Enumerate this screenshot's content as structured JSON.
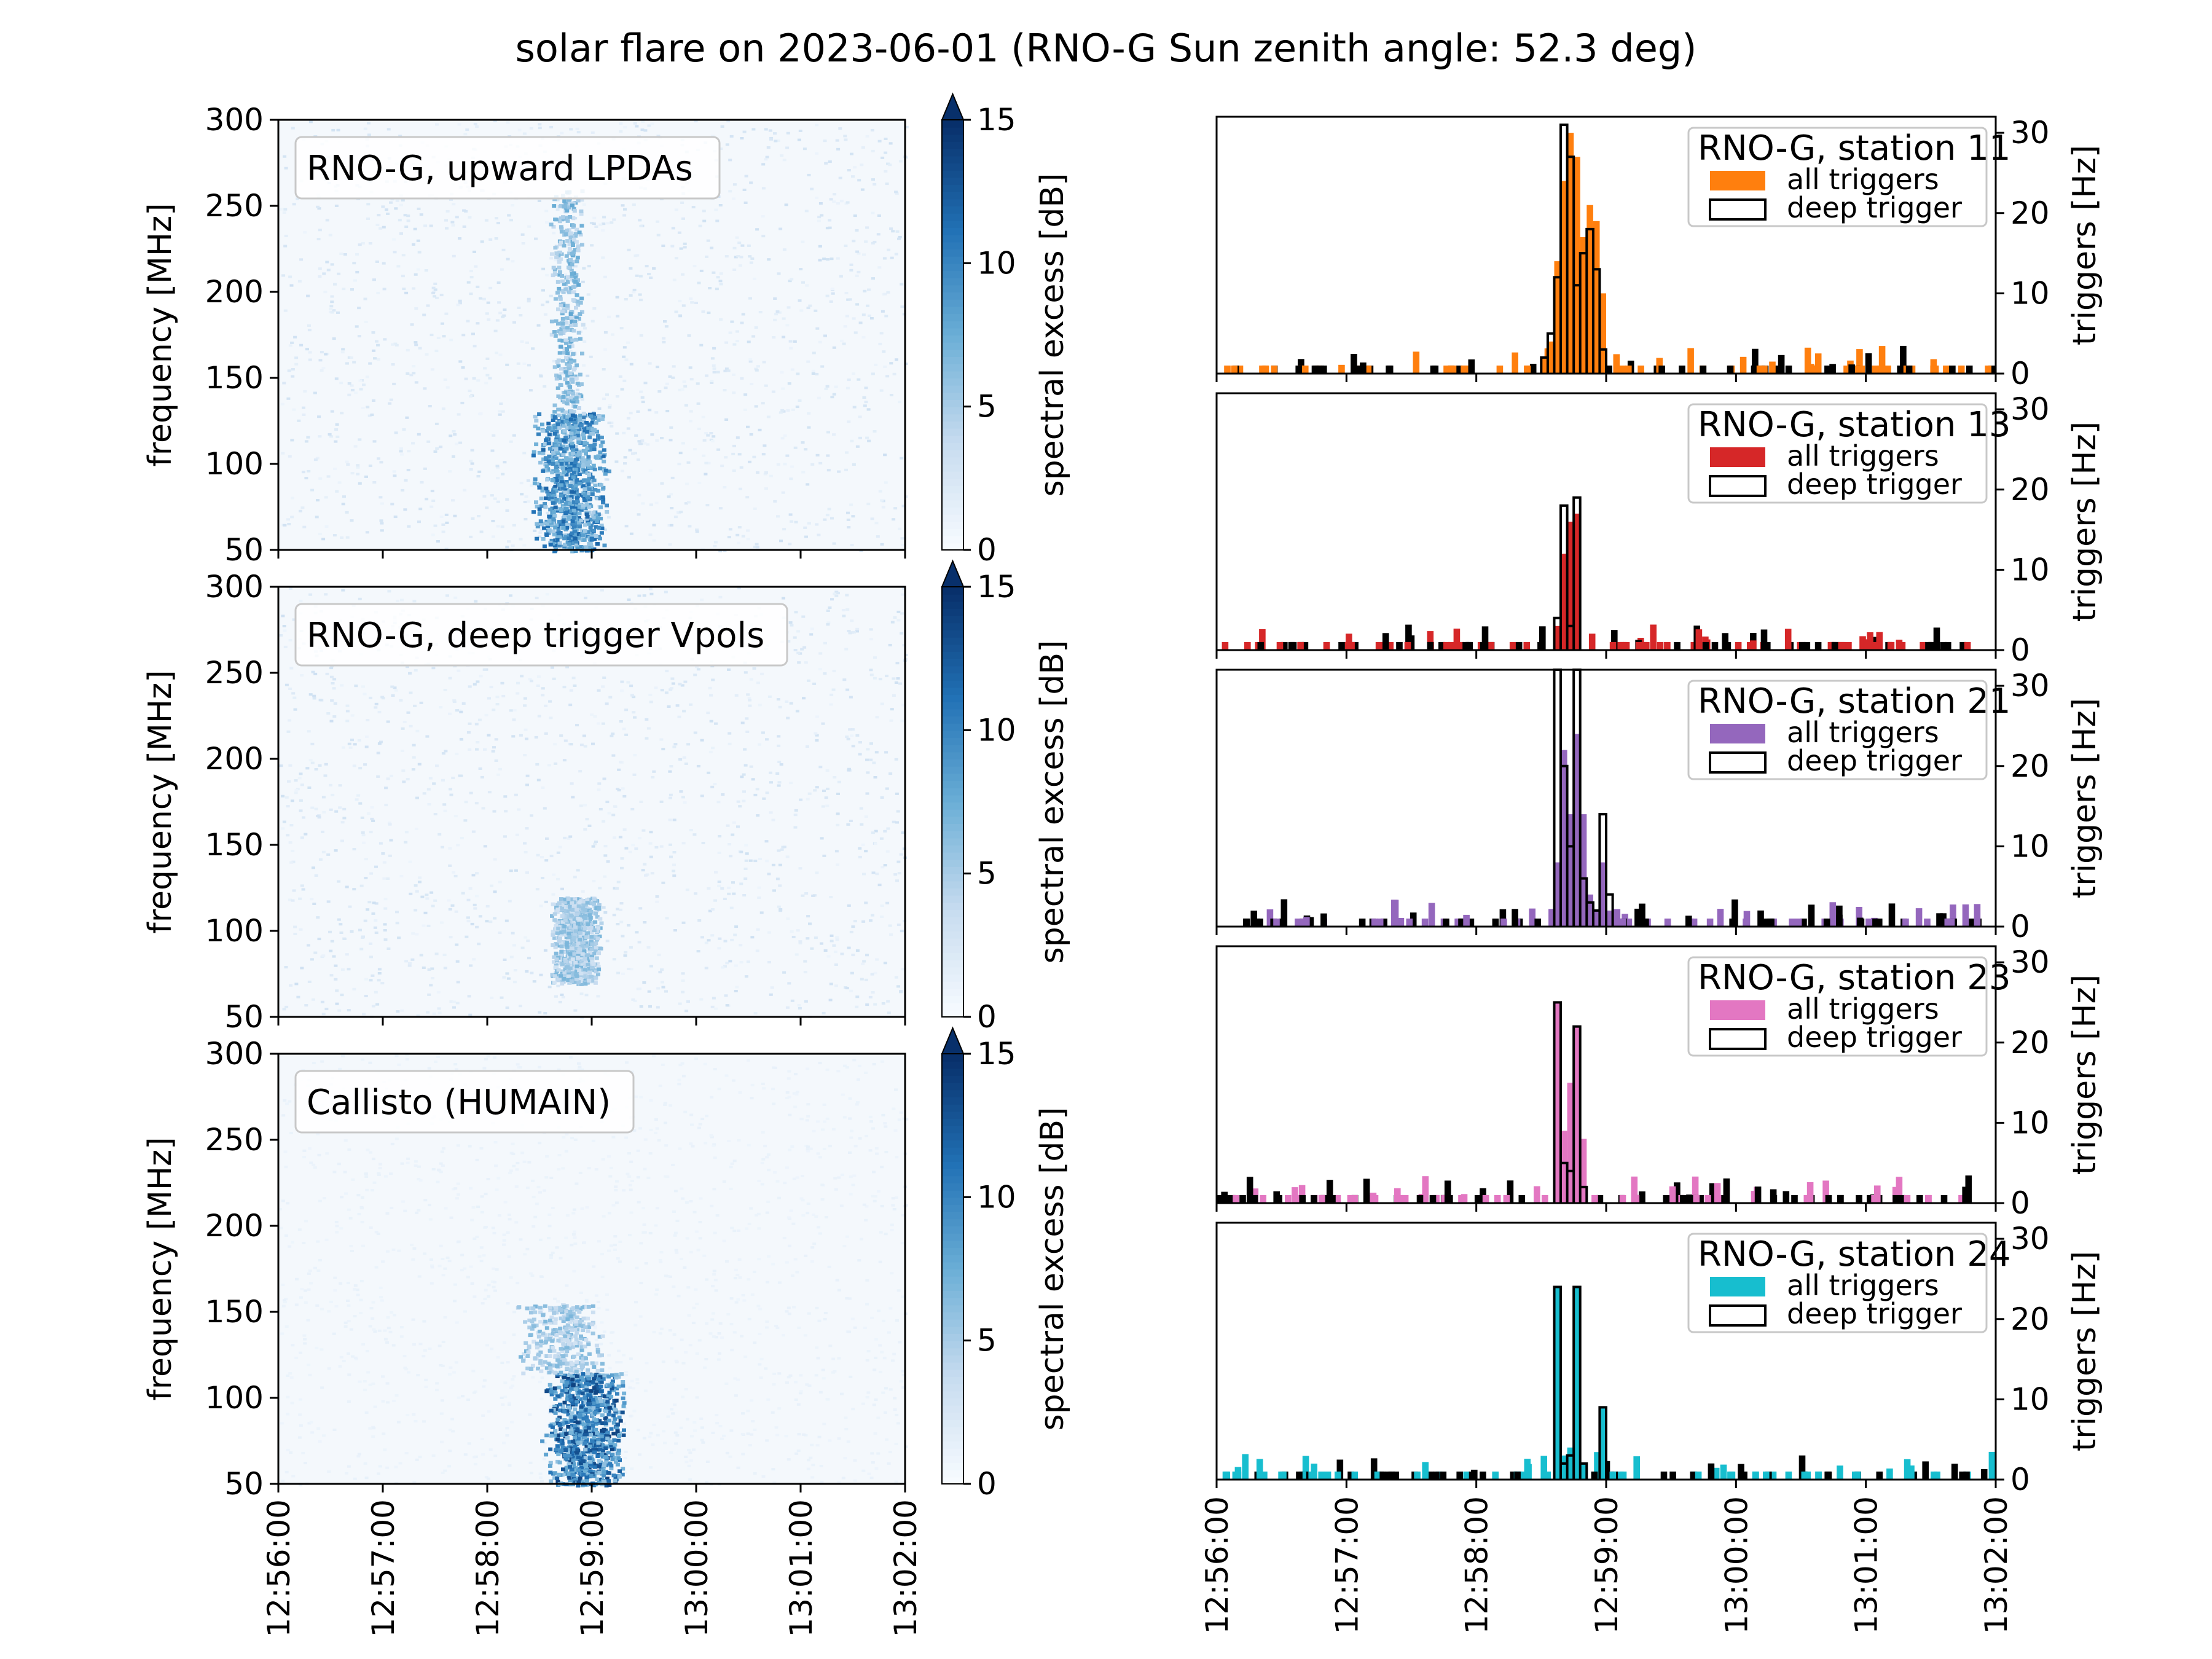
{
  "figure": {
    "title": "solar flare on 2023-06-01 (RNO-G Sun zenith angle: 52.3 deg)"
  },
  "time_ticks": [
    "12:56:00",
    "12:57:00",
    "12:58:00",
    "12:59:00",
    "13:00:00",
    "13:01:00",
    "13:02:00"
  ],
  "chart_data": [
    {
      "type": "heatmap",
      "title": "RNO-G, upward LPDAs",
      "ylabel": "frequency [MHz]",
      "ylim": [
        50,
        300
      ],
      "yticks": [
        50,
        100,
        150,
        200,
        250,
        300
      ],
      "x_range": [
        "12:56:00",
        "13:02:00"
      ],
      "colorbar": {
        "label": "spectral excess [dB]",
        "range": [
          0,
          15
        ],
        "ticks": [
          0,
          5,
          10,
          15
        ],
        "extend": "max",
        "colormap": "Blues"
      },
      "features": [
        {
          "description_type": "burst_core",
          "time_start": "12:58:25",
          "time_end": "12:59:10",
          "freq_low": 50,
          "freq_high": 130,
          "level_db": 12
        },
        {
          "description_type": "burst_tail",
          "time_start": "12:58:35",
          "time_end": "12:58:55",
          "freq_low": 130,
          "freq_high": 260,
          "level_db": 8
        }
      ]
    },
    {
      "type": "heatmap",
      "title": "RNO-G, deep trigger Vpols",
      "ylabel": "frequency [MHz]",
      "ylim": [
        50,
        300
      ],
      "yticks": [
        50,
        100,
        150,
        200,
        250,
        300
      ],
      "x_range": [
        "12:56:00",
        "13:02:00"
      ],
      "colorbar": {
        "label": "spectral excess [dB]",
        "range": [
          0,
          15
        ],
        "ticks": [
          0,
          5,
          10,
          15
        ],
        "extend": "max",
        "colormap": "Blues"
      },
      "features": [
        {
          "description_type": "burst_core",
          "time_start": "12:58:35",
          "time_end": "12:59:05",
          "freq_low": 70,
          "freq_high": 120,
          "level_db": 7
        }
      ]
    },
    {
      "type": "heatmap",
      "title": "Callisto (HUMAIN)",
      "ylabel": "frequency [MHz]",
      "ylim": [
        50,
        300
      ],
      "yticks": [
        50,
        100,
        150,
        200,
        250,
        300
      ],
      "x_range": [
        "12:56:00",
        "13:02:00"
      ],
      "colorbar": {
        "label": "spectral excess [dB]",
        "range": [
          0,
          15
        ],
        "ticks": [
          0,
          5,
          10,
          15
        ],
        "extend": "max",
        "colormap": "Blues"
      },
      "features": [
        {
          "description_type": "burst_core",
          "time_start": "12:58:30",
          "time_end": "12:59:20",
          "freq_low": 50,
          "freq_high": 115,
          "level_db": 14
        },
        {
          "description_type": "band_row",
          "time_start": "12:58:15",
          "time_end": "12:59:10",
          "freq_low": 115,
          "freq_high": 155,
          "level_db": 7
        }
      ]
    },
    {
      "type": "bar",
      "legend_title": "RNO-G, station 11",
      "series": [
        {
          "name": "all triggers",
          "color": "#ff7f0e",
          "style": "filled",
          "points": [
            [
              "12:58:30",
              2
            ],
            [
              "12:58:33",
              4
            ],
            [
              "12:58:36",
              14
            ],
            [
              "12:58:39",
              24
            ],
            [
              "12:58:42",
              30
            ],
            [
              "12:58:45",
              27
            ],
            [
              "12:58:48",
              17
            ],
            [
              "12:58:51",
              21
            ],
            [
              "12:58:54",
              19
            ],
            [
              "12:58:57",
              10
            ]
          ]
        },
        {
          "name": "deep trigger",
          "color": "#000000",
          "style": "step",
          "points": [
            [
              "12:58:30",
              2
            ],
            [
              "12:58:33",
              5
            ],
            [
              "12:58:36",
              12
            ],
            [
              "12:58:39",
              31
            ],
            [
              "12:58:42",
              27
            ],
            [
              "12:58:45",
              11
            ],
            [
              "12:58:48",
              15
            ],
            [
              "12:58:51",
              18
            ],
            [
              "12:58:54",
              13
            ],
            [
              "12:58:57",
              3
            ]
          ]
        }
      ],
      "ylabel": "triggers [Hz]",
      "ylim": [
        0,
        32
      ],
      "yticks": [
        0,
        10,
        20,
        30
      ],
      "x_range": [
        "12:56:00",
        "13:02:00"
      ]
    },
    {
      "type": "bar",
      "legend_title": "RNO-G, station 13",
      "series": [
        {
          "name": "all triggers",
          "color": "#d62728",
          "style": "filled",
          "points": [
            [
              "12:58:36",
              3
            ],
            [
              "12:58:39",
              12
            ],
            [
              "12:58:42",
              16
            ],
            [
              "12:58:45",
              17
            ]
          ]
        },
        {
          "name": "deep trigger",
          "color": "#000000",
          "style": "step",
          "points": [
            [
              "12:58:36",
              4
            ],
            [
              "12:58:39",
              18
            ],
            [
              "12:58:42",
              3
            ],
            [
              "12:58:45",
              19
            ]
          ]
        }
      ],
      "ylabel": "triggers [Hz]",
      "ylim": [
        0,
        32
      ],
      "yticks": [
        0,
        10,
        20,
        30
      ],
      "x_range": [
        "12:56:00",
        "13:02:00"
      ]
    },
    {
      "type": "bar",
      "legend_title": "RNO-G, station 21",
      "series": [
        {
          "name": "all triggers",
          "color": "#9467bd",
          "style": "filled",
          "points": [
            [
              "12:58:36",
              8
            ],
            [
              "12:58:39",
              22
            ],
            [
              "12:58:42",
              14
            ],
            [
              "12:58:45",
              24
            ],
            [
              "12:58:48",
              14
            ],
            [
              "12:58:51",
              4
            ],
            [
              "12:58:54",
              2
            ],
            [
              "12:58:57",
              8
            ],
            [
              "12:59:00",
              2
            ]
          ]
        },
        {
          "name": "deep trigger",
          "color": "#000000",
          "style": "step",
          "points": [
            [
              "12:58:36",
              32
            ],
            [
              "12:58:39",
              20
            ],
            [
              "12:58:42",
              10
            ],
            [
              "12:58:45",
              32
            ],
            [
              "12:58:48",
              6
            ],
            [
              "12:58:51",
              3
            ],
            [
              "12:58:54",
              2
            ],
            [
              "12:58:57",
              14
            ],
            [
              "12:59:00",
              4
            ]
          ]
        }
      ],
      "ylabel": "triggers [Hz]",
      "ylim": [
        0,
        32
      ],
      "yticks": [
        0,
        10,
        20,
        30
      ],
      "x_range": [
        "12:56:00",
        "13:02:00"
      ]
    },
    {
      "type": "bar",
      "legend_title": "RNO-G, station 23",
      "series": [
        {
          "name": "all triggers",
          "color": "#e377c2",
          "style": "filled",
          "points": [
            [
              "12:58:36",
              25
            ],
            [
              "12:58:39",
              9
            ],
            [
              "12:58:42",
              15
            ],
            [
              "12:58:45",
              22
            ],
            [
              "12:58:48",
              8
            ]
          ]
        },
        {
          "name": "deep trigger",
          "color": "#000000",
          "style": "step",
          "points": [
            [
              "12:58:36",
              25
            ],
            [
              "12:58:39",
              5
            ],
            [
              "12:58:42",
              4
            ],
            [
              "12:58:45",
              22
            ],
            [
              "12:58:48",
              2
            ]
          ]
        }
      ],
      "ylabel": "triggers [Hz]",
      "ylim": [
        0,
        32
      ],
      "yticks": [
        0,
        10,
        20,
        30
      ],
      "x_range": [
        "12:56:00",
        "13:02:00"
      ]
    },
    {
      "type": "bar",
      "legend_title": "RNO-G, station 24",
      "series": [
        {
          "name": "all triggers",
          "color": "#17becf",
          "style": "filled",
          "points": [
            [
              "12:58:36",
              24
            ],
            [
              "12:58:39",
              3
            ],
            [
              "12:58:42",
              4
            ],
            [
              "12:58:45",
              24
            ],
            [
              "12:58:48",
              2
            ],
            [
              "12:58:57",
              9
            ]
          ]
        },
        {
          "name": "deep trigger",
          "color": "#000000",
          "style": "step",
          "points": [
            [
              "12:58:36",
              24
            ],
            [
              "12:58:39",
              2
            ],
            [
              "12:58:42",
              3
            ],
            [
              "12:58:45",
              24
            ],
            [
              "12:58:48",
              2
            ],
            [
              "12:58:57",
              9
            ]
          ]
        }
      ],
      "ylabel": "triggers [Hz]",
      "ylim": [
        0,
        32
      ],
      "yticks": [
        0,
        10,
        20,
        30
      ],
      "x_range": [
        "12:56:00",
        "13:02:00"
      ]
    }
  ]
}
